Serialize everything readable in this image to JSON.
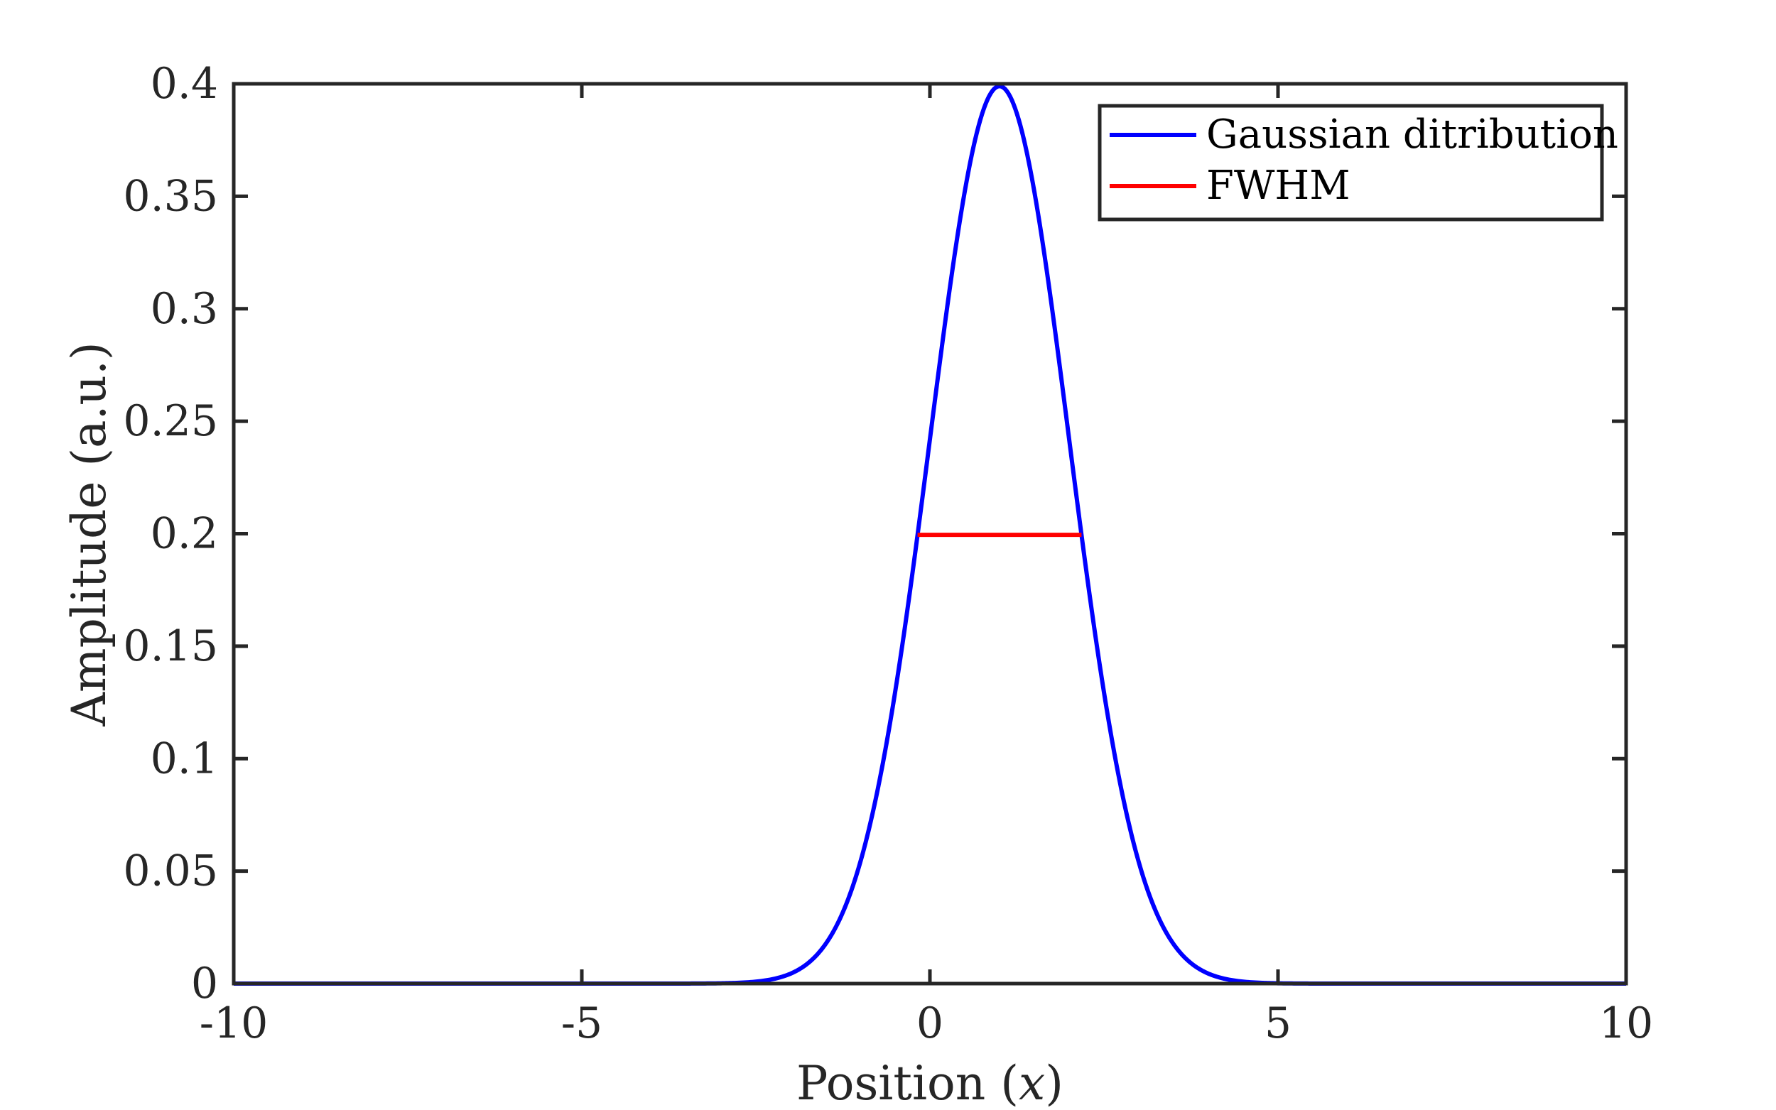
{
  "chart_data": {
    "type": "line",
    "title": "",
    "xlabel": "Position (x)",
    "xlabel_parts": {
      "prefix": "Position (",
      "variable": "x",
      "suffix": ")"
    },
    "ylabel": "Amplitude (a.u.)",
    "xlim": [
      -10,
      10
    ],
    "ylim": [
      0,
      0.4
    ],
    "xticks": [
      -10,
      -5,
      0,
      5,
      10
    ],
    "xtick_labels": [
      "-10",
      "-5",
      "0",
      "5",
      "10"
    ],
    "yticks": [
      0,
      0.05,
      0.1,
      0.15,
      0.2,
      0.25,
      0.3,
      0.35,
      0.4
    ],
    "ytick_labels": [
      "0",
      "0.05",
      "0.1",
      "0.15",
      "0.2",
      "0.25",
      "0.3",
      "0.35",
      "0.4"
    ],
    "grid": false,
    "legend_position": "top-right",
    "series": [
      {
        "name": "Gaussian ditribution",
        "color": "#0000ff",
        "kind": "gaussian",
        "mean": 1,
        "sigma": 1,
        "x": [
          -10,
          -4,
          -3,
          -2.5,
          -2,
          -1.5,
          -1,
          -0.5,
          0,
          0.25,
          0.5,
          0.75,
          1,
          1.25,
          1.5,
          1.75,
          2,
          2.5,
          3,
          3.5,
          4,
          4.5,
          5,
          6,
          10
        ],
        "y": [
          0.0,
          1.5e-06,
          0.0001338,
          0.0008727,
          0.0044318,
          0.017528,
          0.053991,
          0.129518,
          0.241971,
          0.301137,
          0.352065,
          0.386668,
          0.398942,
          0.386668,
          0.352065,
          0.301137,
          0.241971,
          0.129518,
          0.053991,
          0.017528,
          0.0044318,
          0.0008727,
          0.0001338,
          1.5e-06,
          0.0
        ]
      },
      {
        "name": "FWHM",
        "color": "#ff0000",
        "x": [
          -0.1774,
          2.1774
        ],
        "y": [
          0.199471,
          0.199471
        ]
      }
    ]
  }
}
